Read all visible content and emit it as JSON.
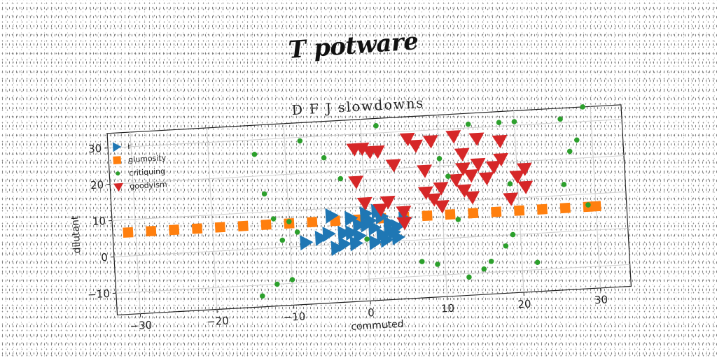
{
  "logo_text": "T potware",
  "chart_data": {
    "type": "scatter",
    "title": "D F J slowdowns",
    "xlabel": "commuted",
    "ylabel": "dilutant",
    "xlim": [
      -33,
      34
    ],
    "ylim": [
      -16,
      34
    ],
    "xticks": [
      -30,
      -20,
      -10,
      0,
      10,
      20,
      30
    ],
    "yticks": [
      -10,
      0,
      10,
      20,
      30
    ],
    "grid": true,
    "legend_position": "upper-left",
    "series": [
      {
        "name": "r",
        "marker": "triangle-right",
        "color": "#1f77b4",
        "points": [
          [
            -8,
            1
          ],
          [
            -4.5,
            8
          ],
          [
            -5,
            3
          ],
          [
            -3,
            0
          ],
          [
            -2,
            7
          ],
          [
            -1,
            2
          ],
          [
            0,
            5
          ],
          [
            1,
            0
          ],
          [
            2,
            7
          ],
          [
            3,
            3
          ],
          [
            4,
            1
          ],
          [
            5,
            6
          ],
          [
            -6,
            2
          ],
          [
            -4,
            -1
          ],
          [
            -2,
            3
          ],
          [
            0,
            8
          ],
          [
            2,
            2
          ],
          [
            3,
            5
          ],
          [
            1,
            4
          ],
          [
            4,
            4
          ],
          [
            -1,
            5
          ],
          [
            -3,
            3
          ],
          [
            0.5,
            6
          ],
          [
            2.5,
            0.5
          ],
          [
            3.5,
            2.5
          ],
          [
            -1.5,
            0
          ],
          [
            1.5,
            8.5
          ]
        ]
      },
      {
        "name": "glumosity",
        "marker": "square",
        "color": "#ff7f0e",
        "points": [
          [
            -31,
            6.5
          ],
          [
            -28,
            6.5
          ],
          [
            -25,
            6.5
          ],
          [
            -22,
            6.5
          ],
          [
            -19,
            6.5
          ],
          [
            -16,
            6.5
          ],
          [
            -13,
            6.5
          ],
          [
            -10,
            6.5
          ],
          [
            -7,
            6.5
          ],
          [
            -4,
            6.5
          ],
          [
            -1,
            6.5
          ],
          [
            2,
            6.5
          ],
          [
            5,
            6.5
          ],
          [
            8,
            6.5
          ],
          [
            11,
            6.5
          ],
          [
            14,
            6.5
          ],
          [
            17,
            6.5
          ],
          [
            20,
            6.5
          ],
          [
            23,
            6.5
          ],
          [
            26,
            6.5
          ],
          [
            29,
            6.5
          ],
          [
            30,
            6.5
          ]
        ]
      },
      {
        "name": "critiquing",
        "marker": "circle",
        "color": "#2ca02c",
        "points": [
          [
            -14,
            26
          ],
          [
            -13,
            15
          ],
          [
            -12,
            8
          ],
          [
            -11,
            2
          ],
          [
            -10,
            7
          ],
          [
            -9,
            4
          ],
          [
            -10,
            -9
          ],
          [
            -12,
            -10
          ],
          [
            -14,
            -13
          ],
          [
            -8,
            29
          ],
          [
            -5,
            24
          ],
          [
            -3,
            18
          ],
          [
            0,
            1
          ],
          [
            2,
            32
          ],
          [
            7,
            -6
          ],
          [
            9,
            -7
          ],
          [
            13,
            -11
          ],
          [
            14,
            31
          ],
          [
            15,
            -9
          ],
          [
            16,
            -7
          ],
          [
            18,
            -3
          ],
          [
            18,
            31
          ],
          [
            19,
            0
          ],
          [
            20,
            31
          ],
          [
            22,
            -8
          ],
          [
            26,
            31
          ],
          [
            27,
            22
          ],
          [
            28,
            25
          ],
          [
            29,
            34
          ],
          [
            29,
            7
          ],
          [
            26,
            13
          ],
          [
            10,
            22
          ],
          [
            11,
            17
          ],
          [
            19,
            14
          ],
          [
            12,
            5
          ]
        ]
      },
      {
        "name": "goodyism",
        "marker": "triangle-down",
        "color": "#d62728",
        "points": [
          [
            -1,
            26
          ],
          [
            0,
            26
          ],
          [
            1,
            25
          ],
          [
            2,
            25
          ],
          [
            4,
            21
          ],
          [
            -1,
            17
          ],
          [
            0,
            11
          ],
          [
            3,
            11
          ],
          [
            5,
            8
          ],
          [
            6,
            28
          ],
          [
            7,
            26
          ],
          [
            8,
            13
          ],
          [
            9,
            27
          ],
          [
            9,
            11
          ],
          [
            10,
            14
          ],
          [
            8,
            19
          ],
          [
            12,
            28
          ],
          [
            13,
            23
          ],
          [
            12,
            16
          ],
          [
            13,
            13
          ],
          [
            14,
            11
          ],
          [
            15,
            27
          ],
          [
            15,
            20
          ],
          [
            16,
            16
          ],
          [
            17,
            19
          ],
          [
            18,
            26
          ],
          [
            18,
            21
          ],
          [
            19,
            10
          ],
          [
            20,
            16
          ],
          [
            21,
            13
          ],
          [
            21,
            18
          ],
          [
            13,
            19
          ],
          [
            14,
            17
          ],
          [
            10,
            9
          ],
          [
            2,
            9
          ],
          [
            5,
            5
          ]
        ]
      }
    ]
  }
}
